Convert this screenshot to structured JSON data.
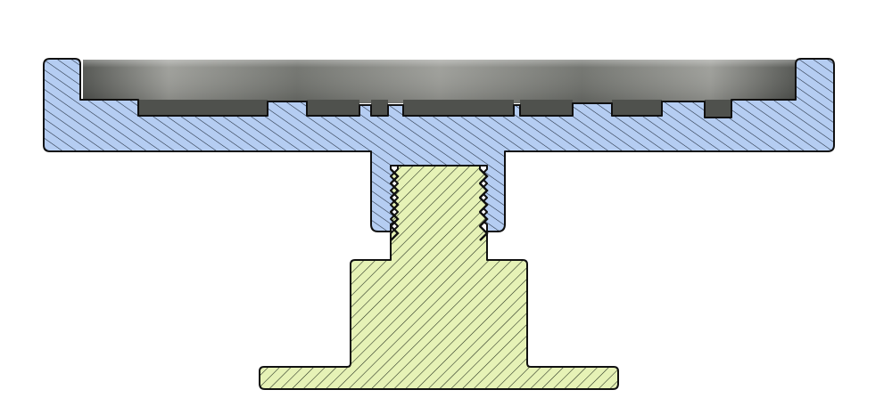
{
  "view": {
    "type": "section-view",
    "background": "#ffffff"
  },
  "parts": [
    {
      "name": "upper-plate",
      "color": "#b5cdf2",
      "hatch_color": "#1f2a3a",
      "hatch_direction": "down-right"
    },
    {
      "name": "threaded-knob",
      "color": "#e6f2b6",
      "hatch_color": "#1f2a1a",
      "hatch_direction": "up-right"
    }
  ],
  "recess": {
    "name": "top-recess",
    "colors": {
      "light": "#9b9c97",
      "mid": "#6e706b",
      "dark": "#4f514d"
    }
  },
  "outline_color": "#111111"
}
